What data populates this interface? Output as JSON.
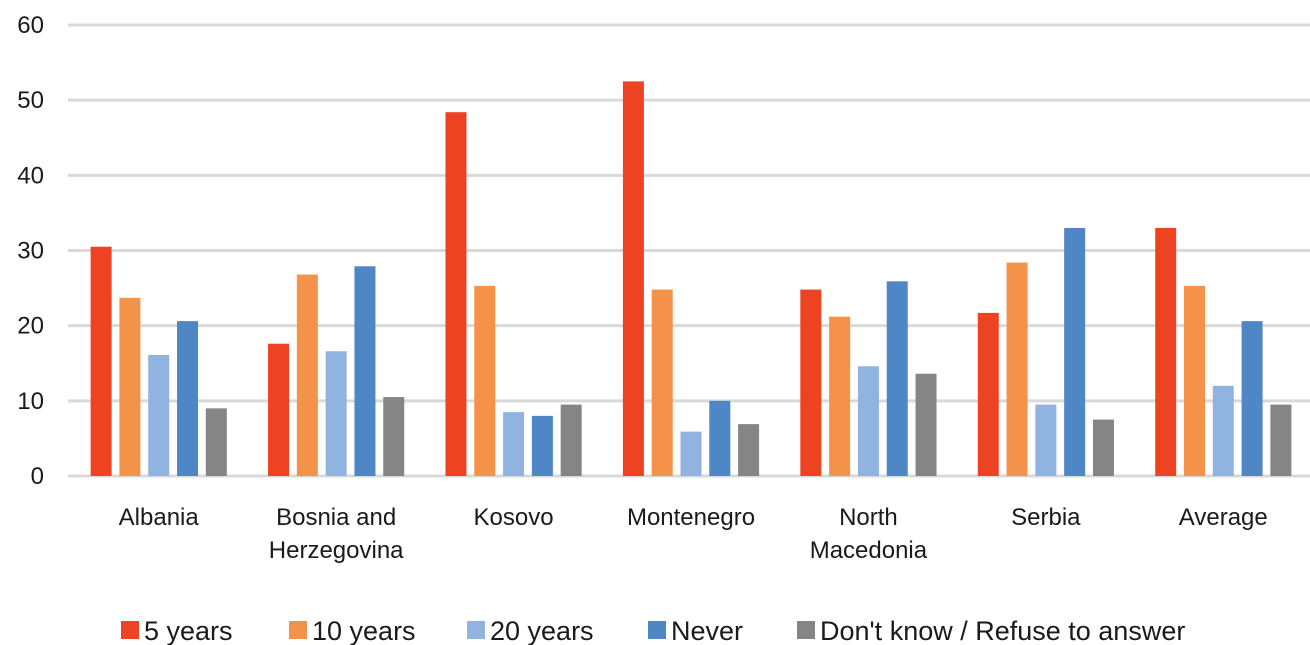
{
  "chart_data": {
    "type": "bar",
    "title": "",
    "xlabel": "",
    "ylabel": "",
    "categories": [
      [
        "Albania"
      ],
      [
        "Bosnia and",
        "Herzegovina"
      ],
      [
        "Kosovo"
      ],
      [
        "Montenegro"
      ],
      [
        "North",
        "Macedonia"
      ],
      [
        "Serbia"
      ],
      [
        "Average"
      ]
    ],
    "ylim": [
      0,
      60
    ],
    "yticks": [
      0,
      10,
      20,
      30,
      40,
      50,
      60
    ],
    "grid": true,
    "legend_position": "bottom",
    "series": [
      {
        "name": "5 years",
        "color": "#ee4323",
        "values": [
          30.5,
          17.6,
          48.4,
          52.5,
          24.8,
          21.7,
          33.0
        ]
      },
      {
        "name": "10 years",
        "color": "#f4924a",
        "values": [
          23.7,
          26.8,
          25.3,
          24.8,
          21.2,
          28.4,
          25.3
        ]
      },
      {
        "name": "20 years",
        "color": "#91b3df",
        "values": [
          16.1,
          16.6,
          8.5,
          5.9,
          14.6,
          9.5,
          12.0
        ]
      },
      {
        "name": "Never",
        "color": "#4f86c6",
        "values": [
          20.6,
          27.9,
          8.0,
          10.0,
          25.9,
          33.0,
          20.6
        ]
      },
      {
        "name": "Don't know / Refuse to answer",
        "color": "#858585",
        "values": [
          9.0,
          10.5,
          9.5,
          6.9,
          13.6,
          7.5,
          9.5
        ]
      }
    ]
  }
}
